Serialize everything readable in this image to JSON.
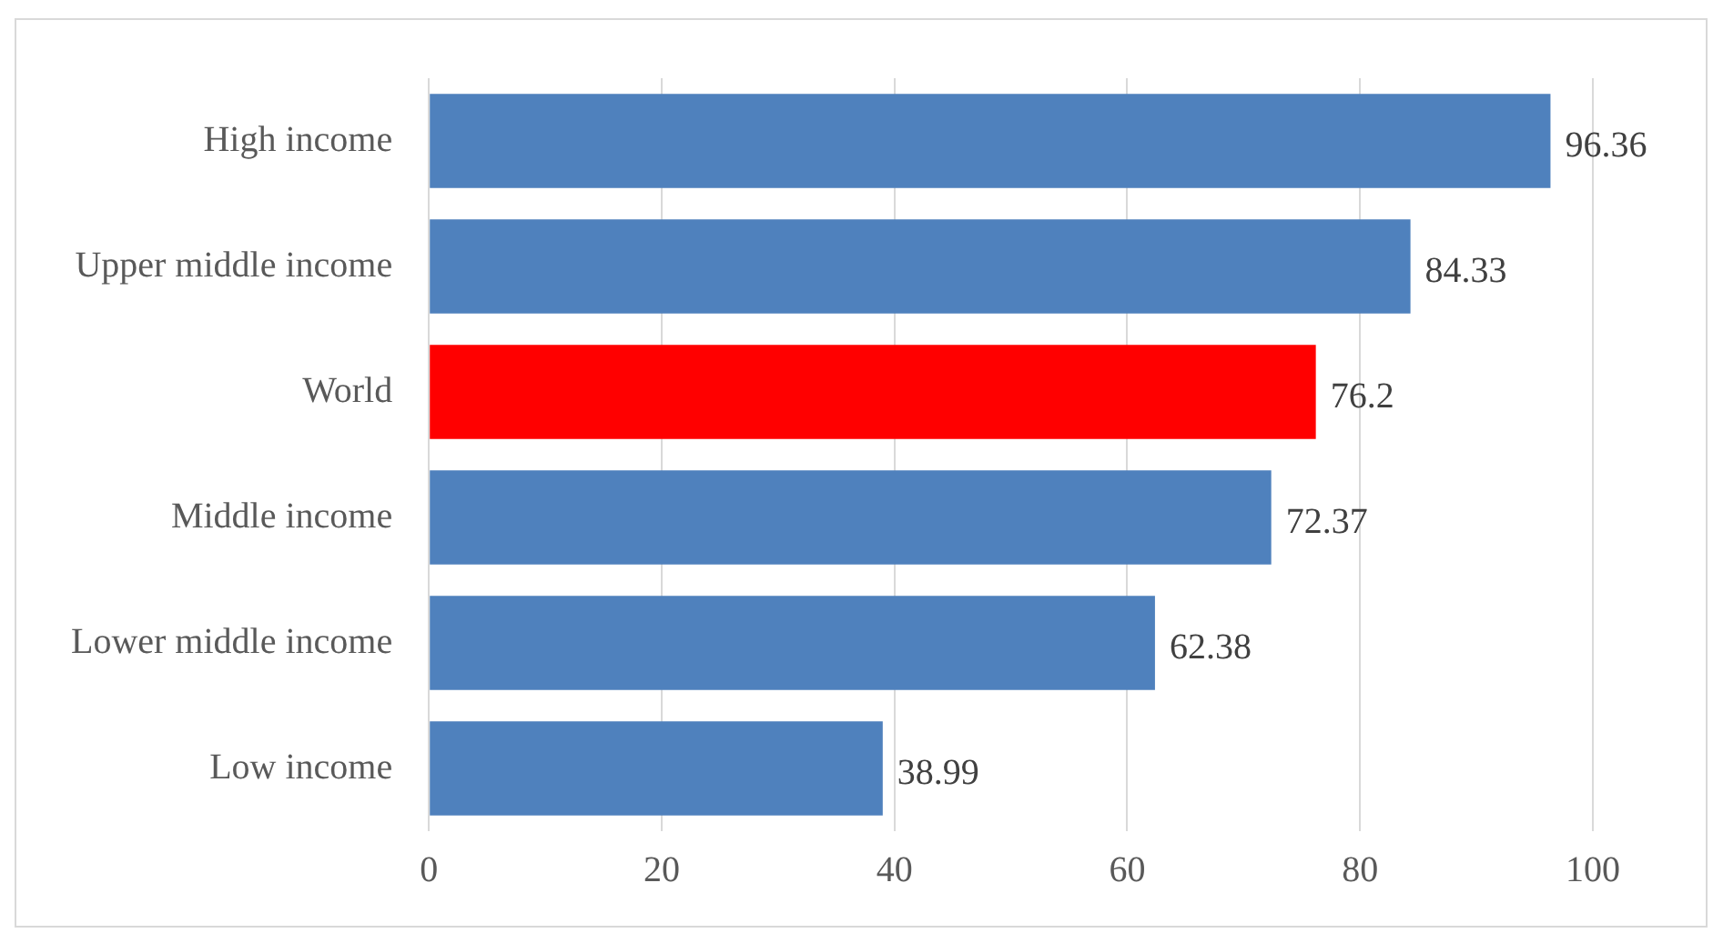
{
  "chart_data": {
    "type": "bar",
    "orientation": "horizontal",
    "categories": [
      "High income",
      "Upper middle income",
      "World",
      "Middle income",
      "Lower middle income",
      "Low income"
    ],
    "values": [
      96.36,
      84.33,
      76.2,
      72.37,
      62.38,
      38.99
    ],
    "colors": [
      "#4f81bd",
      "#4f81bd",
      "#ff0000",
      "#4f81bd",
      "#4f81bd",
      "#4f81bd"
    ],
    "xlim": [
      0,
      100
    ],
    "xticks": [
      0,
      20,
      40,
      60,
      80,
      100
    ],
    "grid": "x",
    "data_labels": true,
    "legend": false
  }
}
